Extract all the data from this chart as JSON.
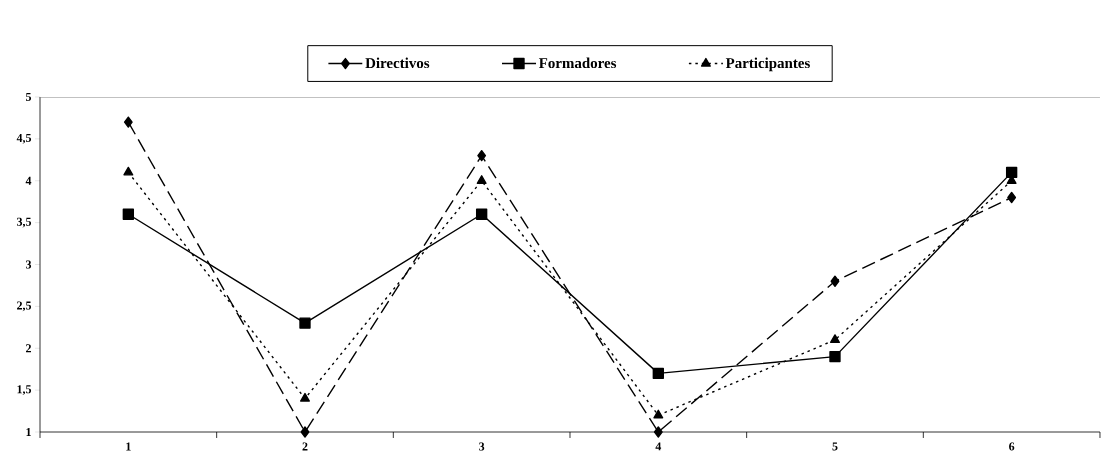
{
  "chart_data": {
    "type": "line",
    "categories": [
      "1",
      "2",
      "3",
      "4",
      "5",
      "6"
    ],
    "series": [
      {
        "name": "Directivos",
        "color": "#000000",
        "marker": "diamond",
        "line_style": "dashed",
        "values": [
          4.7,
          1.0,
          4.3,
          1.0,
          2.8,
          3.8
        ]
      },
      {
        "name": "Formadores",
        "color": "#000000",
        "marker": "square",
        "line_style": "solid",
        "values": [
          3.6,
          2.3,
          3.6,
          1.7,
          1.9,
          4.1
        ]
      },
      {
        "name": "Participantes",
        "color": "#000000",
        "marker": "triangle",
        "line_style": "dotted",
        "values": [
          4.1,
          1.4,
          4.0,
          1.2,
          2.1,
          4.0
        ]
      }
    ],
    "ylim": [
      1,
      5
    ],
    "yticks": [
      1,
      {
        "value": 1.5,
        "label": "1,5"
      },
      2,
      {
        "value": 2.5,
        "label": "2,5"
      },
      3,
      {
        "value": 3.5,
        "label": "3,5"
      },
      4,
      {
        "value": 4.5,
        "label": "4,5"
      },
      5
    ],
    "grid": false,
    "legend": "top"
  }
}
